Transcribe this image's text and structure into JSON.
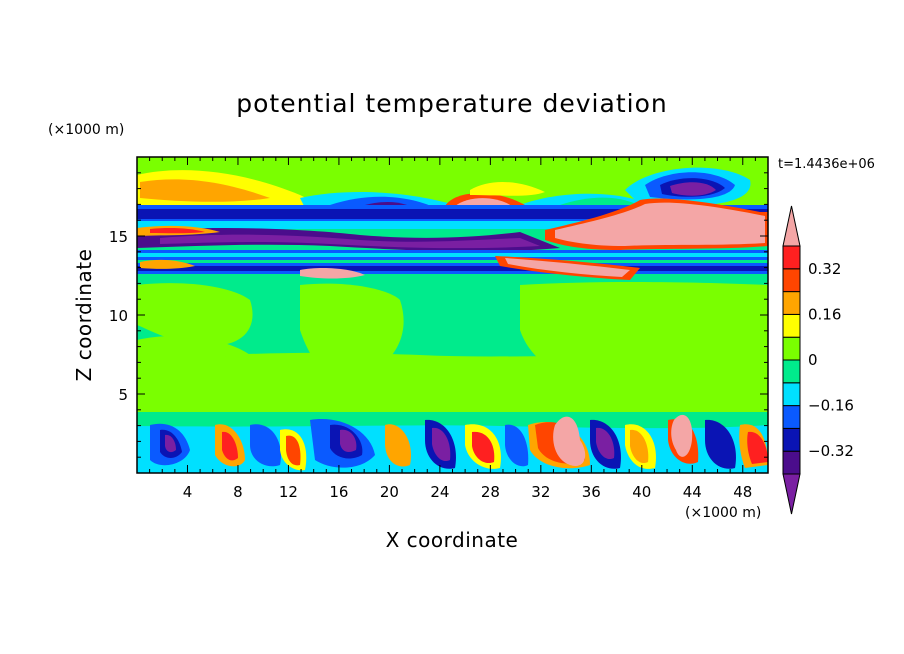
{
  "chart_data": {
    "type": "heatmap",
    "title": "potential temperature deviation",
    "time_label": "t=1.4436e+06",
    "xlabel": "X coordinate",
    "ylabel": "Z coordinate",
    "x_unit": "(×1000 m)",
    "y_unit": "(×1000 m)",
    "xlim": [
      0,
      50
    ],
    "ylim": [
      0,
      20
    ],
    "x_ticks": [
      4,
      8,
      12,
      16,
      20,
      24,
      28,
      32,
      36,
      40,
      44,
      48
    ],
    "y_ticks": [
      5,
      10,
      15
    ],
    "colorbar": {
      "labels": [
        "0.32",
        "0.16",
        "0",
        "−0.16",
        "−0.32"
      ],
      "label_values": [
        0.32,
        0.16,
        0,
        -0.16,
        -0.32
      ],
      "levels": [
        -0.4,
        -0.32,
        -0.24,
        -0.16,
        -0.08,
        0,
        0.08,
        0.16,
        0.24,
        0.32,
        0.4
      ],
      "colors": [
        "#7a1fa2",
        "#4b0d8c",
        "#0a14b4",
        "#0a5aff",
        "#00e0ff",
        "#00eb8c",
        "#7aff00",
        "#ffff00",
        "#ffa500",
        "#ff4500",
        "#ff2020",
        "#f4a6a6"
      ],
      "extend": "both"
    },
    "features": [
      {
        "x": [
          0,
          50
        ],
        "z": [
          16.1,
          16.6
        ],
        "value": -0.35
      },
      {
        "x": [
          0,
          50
        ],
        "z": [
          12.5,
          12.9
        ],
        "value": -0.2
      },
      {
        "x": [
          0,
          50
        ],
        "z": [
          13.6,
          13.9
        ],
        "value": -0.2
      },
      {
        "x": [
          32,
          50
        ],
        "z": [
          14.3,
          16.4
        ],
        "value": 0.45
      },
      {
        "x": [
          27,
          40
        ],
        "z": [
          12.2,
          13.4
        ],
        "value": 0.45
      },
      {
        "x": [
          32,
          36
        ],
        "z": [
          0.6,
          3.6
        ],
        "value": 0.45
      },
      {
        "x": [
          42.5,
          44.5
        ],
        "z": [
          1.0,
          3.8
        ],
        "value": 0.45
      },
      {
        "x": [
          41,
          47
        ],
        "z": [
          16.6,
          18.6
        ],
        "value": -0.35
      },
      {
        "x": [
          18,
          23
        ],
        "z": [
          16.3,
          17.6
        ],
        "value": -0.35
      },
      {
        "x": [
          25,
          29
        ],
        "z": [
          16.5,
          17.9
        ],
        "value": 0.4
      },
      {
        "x": [
          0,
          24
        ],
        "z": [
          14.0,
          15.6
        ],
        "value": -0.35
      }
    ]
  }
}
